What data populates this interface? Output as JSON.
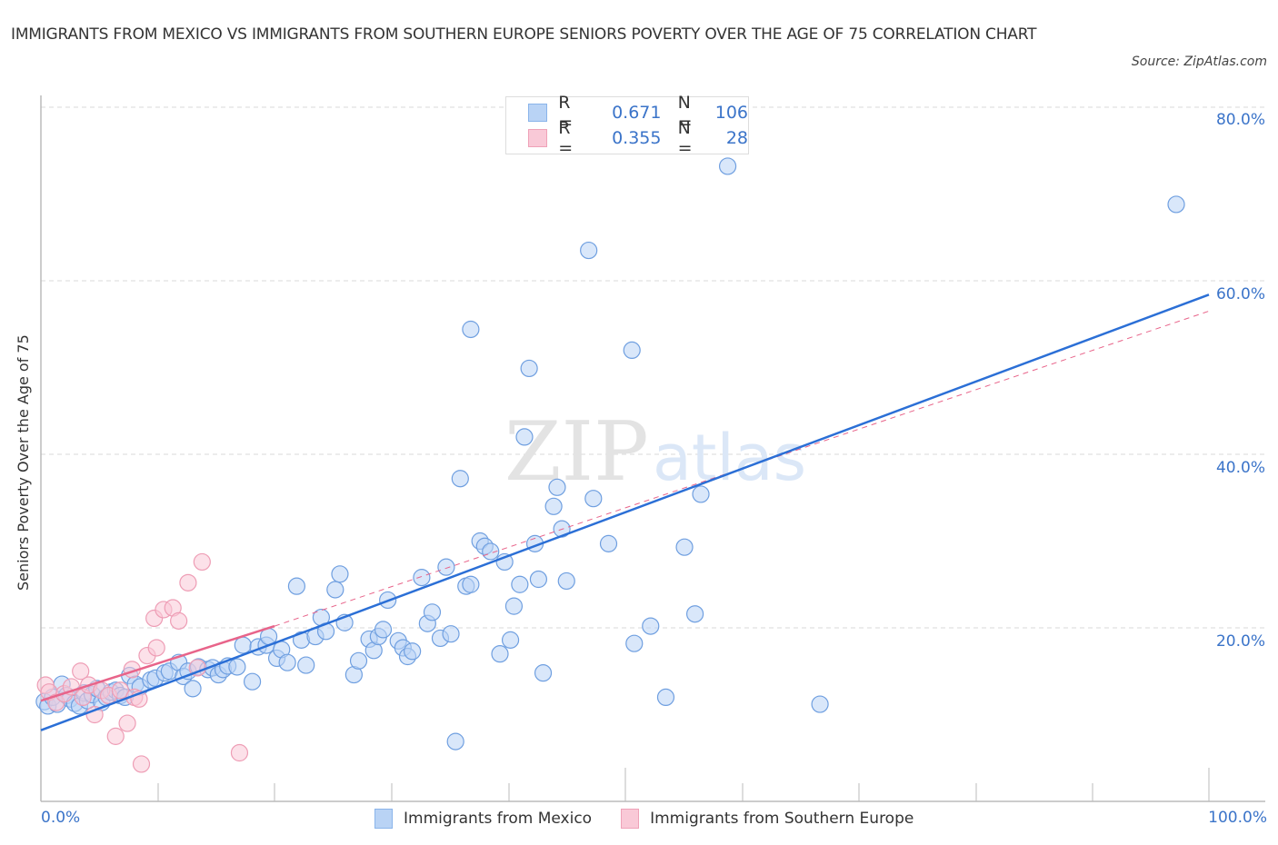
{
  "header": {
    "title": "IMMIGRANTS FROM MEXICO VS IMMIGRANTS FROM SOUTHERN EUROPE SENIORS POVERTY OVER THE AGE OF 75 CORRELATION CHART",
    "source": "Source: ZipAtlas.com"
  },
  "legend": {
    "rows": [
      {
        "r_label": "R =",
        "r_value": "0.671",
        "n_label": "N =",
        "n_value": "106",
        "color": "#b9d3f5"
      },
      {
        "r_label": "R =",
        "r_value": "0.355",
        "n_label": "N =",
        "n_value": "28",
        "color": "#f9c9d7"
      }
    ],
    "series_labels": [
      "Immigrants from Mexico",
      "Immigrants from Southern Europe"
    ]
  },
  "axes": {
    "ylabel": "Seniors Poverty Over the Age of 75",
    "yticks": [
      "80.0%",
      "60.0%",
      "40.0%",
      "20.0%"
    ],
    "xticks": [
      "0.0%",
      "100.0%"
    ]
  },
  "watermark": {
    "zip": "ZIP",
    "atlas": "atlas"
  },
  "colors": {
    "mexico": "#3b78d8",
    "mexico_fill": "#b9d3f5",
    "southern_europe": "#e8648a",
    "southern_europe_fill": "#f9c9d7",
    "tick_text": "#3b74c9"
  },
  "chart_data": {
    "type": "scatter",
    "title": "Immigrants from Mexico vs Immigrants from Southern Europe Seniors Poverty Over the Age of 75 Correlation Chart",
    "xlabel": "",
    "ylabel": "Seniors Poverty Over the Age of 75",
    "xlim": [
      0,
      100
    ],
    "ylim": [
      0,
      80
    ],
    "grid": true,
    "legend_position": "bottom",
    "series": [
      {
        "name": "Immigrants from Mexico",
        "R": 0.671,
        "N": 106,
        "trend": {
          "x": [
            0,
            100
          ],
          "y": [
            8.2,
            58.4
          ]
        },
        "points": [
          [
            0.3,
            11.5
          ],
          [
            0.6,
            11.0
          ],
          [
            1.0,
            12.0
          ],
          [
            1.4,
            11.2
          ],
          [
            1.8,
            13.5
          ],
          [
            2.2,
            12.2
          ],
          [
            2.5,
            11.8
          ],
          [
            2.9,
            11.3
          ],
          [
            3.3,
            11.0
          ],
          [
            3.7,
            12.5
          ],
          [
            4.0,
            11.6
          ],
          [
            4.4,
            12.3
          ],
          [
            4.8,
            13.0
          ],
          [
            5.2,
            11.4
          ],
          [
            5.6,
            12.0
          ],
          [
            6.0,
            12.6
          ],
          [
            6.4,
            12.8
          ],
          [
            6.8,
            12.2
          ],
          [
            7.2,
            12.0
          ],
          [
            7.6,
            14.5
          ],
          [
            8.1,
            13.5
          ],
          [
            8.5,
            13.2
          ],
          [
            9.4,
            14.0
          ],
          [
            9.8,
            14.2
          ],
          [
            10.6,
            14.8
          ],
          [
            11.0,
            15.0
          ],
          [
            11.8,
            16.0
          ],
          [
            12.2,
            14.4
          ],
          [
            12.6,
            15.0
          ],
          [
            13.0,
            13.0
          ],
          [
            13.5,
            15.5
          ],
          [
            14.3,
            15.2
          ],
          [
            14.7,
            15.4
          ],
          [
            15.2,
            14.6
          ],
          [
            15.6,
            15.2
          ],
          [
            16.0,
            15.6
          ],
          [
            16.8,
            15.5
          ],
          [
            17.3,
            18.0
          ],
          [
            18.1,
            13.8
          ],
          [
            18.6,
            17.8
          ],
          [
            19.3,
            18.0
          ],
          [
            19.5,
            19.0
          ],
          [
            20.2,
            16.5
          ],
          [
            20.6,
            17.5
          ],
          [
            21.1,
            16.0
          ],
          [
            21.9,
            24.8
          ],
          [
            22.3,
            18.6
          ],
          [
            22.7,
            15.7
          ],
          [
            23.5,
            19.0
          ],
          [
            24.0,
            21.2
          ],
          [
            24.4,
            19.6
          ],
          [
            25.2,
            24.4
          ],
          [
            25.6,
            26.2
          ],
          [
            26.0,
            20.6
          ],
          [
            26.8,
            14.6
          ],
          [
            27.2,
            16.2
          ],
          [
            28.1,
            18.7
          ],
          [
            28.5,
            17.4
          ],
          [
            28.9,
            19.0
          ],
          [
            29.3,
            19.8
          ],
          [
            29.7,
            23.2
          ],
          [
            30.6,
            18.5
          ],
          [
            31.0,
            17.7
          ],
          [
            31.4,
            16.7
          ],
          [
            31.8,
            17.3
          ],
          [
            32.6,
            25.8
          ],
          [
            33.1,
            20.5
          ],
          [
            33.5,
            21.8
          ],
          [
            34.2,
            18.8
          ],
          [
            34.7,
            27.0
          ],
          [
            35.1,
            19.3
          ],
          [
            35.5,
            6.9
          ],
          [
            35.9,
            37.2
          ],
          [
            36.4,
            24.8
          ],
          [
            36.8,
            25.0
          ],
          [
            37.6,
            30.0
          ],
          [
            38.0,
            29.4
          ],
          [
            38.5,
            28.8
          ],
          [
            39.3,
            17.0
          ],
          [
            39.7,
            27.6
          ],
          [
            40.2,
            18.6
          ],
          [
            40.5,
            22.5
          ],
          [
            41.0,
            25.0
          ],
          [
            41.4,
            42.0
          ],
          [
            41.8,
            49.9
          ],
          [
            42.3,
            29.7
          ],
          [
            42.6,
            25.6
          ],
          [
            43.0,
            14.8
          ],
          [
            43.9,
            34.0
          ],
          [
            44.2,
            36.2
          ],
          [
            44.6,
            31.4
          ],
          [
            45.0,
            25.4
          ],
          [
            46.9,
            63.5
          ],
          [
            47.3,
            34.9
          ],
          [
            48.6,
            29.7
          ],
          [
            50.6,
            52.0
          ],
          [
            50.8,
            18.2
          ],
          [
            52.2,
            20.2
          ],
          [
            53.5,
            12.0
          ],
          [
            55.1,
            29.3
          ],
          [
            56.0,
            21.6
          ],
          [
            56.5,
            35.4
          ],
          [
            58.8,
            73.2
          ],
          [
            36.8,
            54.4
          ],
          [
            66.7,
            11.2
          ],
          [
            97.2,
            68.8
          ]
        ]
      },
      {
        "name": "Immigrants from Southern Europe",
        "R": 0.355,
        "N": 28,
        "trend": {
          "x": [
            0,
            20
          ],
          "y": [
            11.6,
            20.2
          ]
        },
        "trend_extension": {
          "x": [
            20,
            100
          ],
          "y": [
            20.2,
            56.5
          ],
          "style": "dashed"
        },
        "points": [
          [
            0.4,
            13.4
          ],
          [
            0.7,
            12.6
          ],
          [
            1.3,
            11.4
          ],
          [
            2.0,
            12.4
          ],
          [
            2.6,
            13.2
          ],
          [
            3.4,
            15.0
          ],
          [
            3.6,
            12.0
          ],
          [
            4.1,
            13.4
          ],
          [
            4.6,
            10.0
          ],
          [
            5.2,
            12.8
          ],
          [
            5.8,
            12.2
          ],
          [
            6.4,
            7.5
          ],
          [
            6.8,
            12.8
          ],
          [
            7.4,
            9.0
          ],
          [
            7.8,
            15.2
          ],
          [
            8.0,
            12.0
          ],
          [
            8.4,
            11.8
          ],
          [
            8.6,
            4.3
          ],
          [
            9.1,
            16.8
          ],
          [
            9.7,
            21.1
          ],
          [
            9.9,
            17.7
          ],
          [
            10.5,
            22.1
          ],
          [
            11.3,
            22.3
          ],
          [
            11.8,
            20.8
          ],
          [
            12.6,
            25.2
          ],
          [
            13.4,
            15.4
          ],
          [
            13.8,
            27.6
          ],
          [
            17.0,
            5.6
          ]
        ]
      }
    ]
  }
}
